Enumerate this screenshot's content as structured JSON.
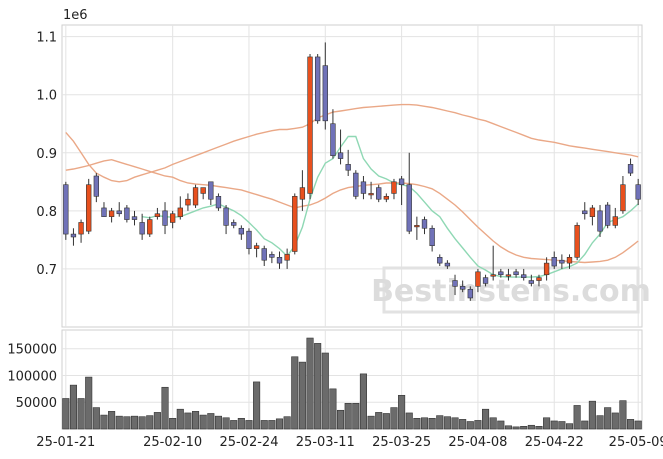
{
  "chart_data": {
    "type": "candlestick",
    "title": "",
    "watermark": "Bestinstens.com",
    "price_exponent_label": "1e6",
    "price_axis": {
      "ylim": [
        600000,
        1120000
      ],
      "ticks": [
        700000,
        800000,
        900000,
        1000000,
        1100000
      ],
      "tick_labels": [
        "0.7",
        "0.8",
        "0.9",
        "1.0",
        "1.1"
      ]
    },
    "volume_axis": {
      "ylim": [
        0,
        185000
      ],
      "ticks": [
        50000,
        100000,
        150000
      ],
      "tick_labels": [
        "50000",
        "100000",
        "150000"
      ]
    },
    "x_tick_labels": [
      {
        "index": 0,
        "label": "25-01-21"
      },
      {
        "index": 14,
        "label": "25-02-10"
      },
      {
        "index": 24,
        "label": "25-02-24"
      },
      {
        "index": 34,
        "label": "25-03-11"
      },
      {
        "index": 44,
        "label": "25-03-25"
      },
      {
        "index": 54,
        "label": "25-04-08"
      },
      {
        "index": 64,
        "label": "25-04-22"
      },
      {
        "index": 75,
        "label": "25-05-09"
      }
    ],
    "colors": {
      "up": "#e8501e",
      "down": "#7072b8",
      "volume": "#6b6b6b",
      "ma_short": "#8fd8b4",
      "bollinger": "#eaa887",
      "grid": "#e3e3e3"
    },
    "ohlc": [
      [
        845000,
        850000,
        750000,
        760000
      ],
      [
        760000,
        770000,
        740000,
        755000
      ],
      [
        760000,
        785000,
        745000,
        780000
      ],
      [
        765000,
        855000,
        760000,
        845000
      ],
      [
        860000,
        865000,
        815000,
        825000
      ],
      [
        805000,
        815000,
        790000,
        790000
      ],
      [
        790000,
        805000,
        780000,
        800000
      ],
      [
        800000,
        815000,
        790000,
        795000
      ],
      [
        805000,
        810000,
        780000,
        785000
      ],
      [
        790000,
        800000,
        775000,
        785000
      ],
      [
        780000,
        795000,
        750000,
        760000
      ],
      [
        760000,
        790000,
        755000,
        785000
      ],
      [
        790000,
        805000,
        785000,
        795000
      ],
      [
        800000,
        815000,
        760000,
        775000
      ],
      [
        780000,
        800000,
        770000,
        795000
      ],
      [
        790000,
        825000,
        785000,
        805000
      ],
      [
        810000,
        830000,
        800000,
        820000
      ],
      [
        810000,
        845000,
        805000,
        840000
      ],
      [
        830000,
        840000,
        820000,
        840000
      ],
      [
        850000,
        850000,
        810000,
        820000
      ],
      [
        825000,
        830000,
        800000,
        805000
      ],
      [
        805000,
        810000,
        760000,
        775000
      ],
      [
        780000,
        785000,
        770000,
        775000
      ],
      [
        770000,
        775000,
        750000,
        760000
      ],
      [
        765000,
        770000,
        725000,
        735000
      ],
      [
        735000,
        745000,
        720000,
        740000
      ],
      [
        735000,
        740000,
        705000,
        715000
      ],
      [
        725000,
        730000,
        710000,
        720000
      ],
      [
        720000,
        730000,
        700000,
        710000
      ],
      [
        715000,
        735000,
        700000,
        725000
      ],
      [
        730000,
        830000,
        725000,
        825000
      ],
      [
        820000,
        870000,
        800000,
        840000
      ],
      [
        830000,
        1070000,
        820000,
        1065000
      ],
      [
        1065000,
        1070000,
        950000,
        955000
      ],
      [
        1050000,
        1090000,
        940000,
        955000
      ],
      [
        950000,
        975000,
        890000,
        895000
      ],
      [
        900000,
        940000,
        880000,
        890000
      ],
      [
        880000,
        905000,
        860000,
        870000
      ],
      [
        865000,
        870000,
        820000,
        825000
      ],
      [
        850000,
        860000,
        820000,
        830000
      ],
      [
        830000,
        850000,
        820000,
        830000
      ],
      [
        840000,
        845000,
        815000,
        820000
      ],
      [
        820000,
        830000,
        815000,
        825000
      ],
      [
        830000,
        855000,
        820000,
        850000
      ],
      [
        855000,
        860000,
        810000,
        845000
      ],
      [
        845000,
        900000,
        760000,
        765000
      ],
      [
        775000,
        790000,
        750000,
        775000
      ],
      [
        785000,
        790000,
        760000,
        770000
      ],
      [
        770000,
        775000,
        730000,
        740000
      ],
      [
        720000,
        725000,
        705000,
        710000
      ],
      [
        710000,
        715000,
        700000,
        705000
      ],
      [
        680000,
        690000,
        655000,
        670000
      ],
      [
        670000,
        680000,
        660000,
        665000
      ],
      [
        665000,
        670000,
        645000,
        650000
      ],
      [
        670000,
        700000,
        660000,
        695000
      ],
      [
        685000,
        690000,
        670000,
        675000
      ],
      [
        690000,
        740000,
        680000,
        690000
      ],
      [
        695000,
        700000,
        685000,
        690000
      ],
      [
        690000,
        700000,
        680000,
        690000
      ],
      [
        695000,
        700000,
        685000,
        690000
      ],
      [
        690000,
        700000,
        680000,
        685000
      ],
      [
        680000,
        690000,
        670000,
        675000
      ],
      [
        680000,
        690000,
        670000,
        685000
      ],
      [
        690000,
        720000,
        680000,
        710000
      ],
      [
        720000,
        730000,
        700000,
        705000
      ],
      [
        715000,
        725000,
        700000,
        710000
      ],
      [
        710000,
        725000,
        700000,
        720000
      ],
      [
        720000,
        780000,
        715000,
        775000
      ],
      [
        800000,
        815000,
        785000,
        795000
      ],
      [
        790000,
        810000,
        775000,
        805000
      ],
      [
        800000,
        810000,
        755000,
        765000
      ],
      [
        810000,
        815000,
        770000,
        775000
      ],
      [
        775000,
        805000,
        770000,
        790000
      ],
      [
        800000,
        860000,
        795000,
        845000
      ],
      [
        880000,
        890000,
        860000,
        865000
      ],
      [
        845000,
        855000,
        810000,
        820000
      ]
    ],
    "volume": [
      57000,
      82000,
      57000,
      97000,
      40000,
      26000,
      33000,
      24000,
      23000,
      24000,
      23000,
      25000,
      31000,
      78000,
      20000,
      37000,
      30000,
      33000,
      26000,
      29000,
      24000,
      21000,
      16000,
      20000,
      16000,
      88000,
      16000,
      16000,
      19000,
      23000,
      135000,
      125000,
      170000,
      160000,
      142000,
      75000,
      35000,
      48000,
      48000,
      103000,
      24000,
      31000,
      29000,
      40000,
      63000,
      30000,
      20000,
      21000,
      20000,
      25000,
      23000,
      21000,
      18000,
      14000,
      16000,
      37000,
      21000,
      15000,
      6000,
      4000,
      5000,
      7000,
      5000,
      21000,
      15000,
      14000,
      10000,
      44000,
      15000,
      52000,
      25000,
      40000,
      30000,
      53000,
      18000,
      15000
    ],
    "ma_short": [
      null,
      null,
      null,
      null,
      null,
      null,
      null,
      null,
      null,
      null,
      790000,
      788000,
      792000,
      790000,
      789000,
      790000,
      795000,
      800000,
      805000,
      808000,
      812000,
      806000,
      800000,
      792000,
      780000,
      767000,
      752000,
      745000,
      735000,
      722000,
      740000,
      772000,
      820000,
      858000,
      882000,
      890000,
      910000,
      928000,
      928000,
      890000,
      872000,
      860000,
      855000,
      848000,
      845000,
      842000,
      830000,
      815000,
      800000,
      790000,
      770000,
      752000,
      736000,
      720000,
      705000,
      698000,
      690000,
      687000,
      686000,
      686000,
      686000,
      686000,
      687000,
      690000,
      695000,
      700000,
      704000,
      710000,
      725000,
      745000,
      760000,
      780000,
      785000,
      790000,
      800000,
      812000
    ],
    "bollinger_upper": [
      935000,
      920000,
      900000,
      880000,
      865000,
      858000,
      852000,
      850000,
      852000,
      858000,
      862000,
      866000,
      870000,
      874000,
      880000,
      885000,
      890000,
      895000,
      900000,
      905000,
      910000,
      915000,
      920000,
      924000,
      928000,
      932000,
      935000,
      938000,
      940000,
      940000,
      942000,
      944000,
      950000,
      960000,
      965000,
      970000,
      972000,
      974000,
      976000,
      978000,
      979000,
      980000,
      981000,
      982000,
      983000,
      983000,
      982000,
      980000,
      978000,
      975000,
      972000,
      969000,
      965000,
      962000,
      958000,
      955000,
      950000,
      945000,
      940000,
      935000,
      930000,
      925000,
      922000,
      920000,
      918000,
      915000,
      912000,
      910000,
      908000,
      906000,
      904000,
      902000,
      900000,
      898000,
      896000,
      893000
    ],
    "bollinger_lower": [
      870000,
      872000,
      875000,
      878000,
      882000,
      886000,
      888000,
      884000,
      880000,
      876000,
      872000,
      868000,
      864000,
      860000,
      858000,
      852000,
      848000,
      846000,
      845000,
      844000,
      842000,
      840000,
      838000,
      836000,
      832000,
      828000,
      824000,
      820000,
      815000,
      810000,
      805000,
      808000,
      810000,
      815000,
      822000,
      830000,
      836000,
      840000,
      842000,
      844000,
      845000,
      846000,
      848000,
      848000,
      848000,
      847000,
      845000,
      842000,
      838000,
      830000,
      820000,
      810000,
      798000,
      785000,
      772000,
      760000,
      748000,
      738000,
      730000,
      724000,
      720000,
      718000,
      717000,
      716000,
      715000,
      714000,
      713000,
      712000,
      711000,
      712000,
      713000,
      715000,
      720000,
      728000,
      738000,
      748000
    ]
  }
}
